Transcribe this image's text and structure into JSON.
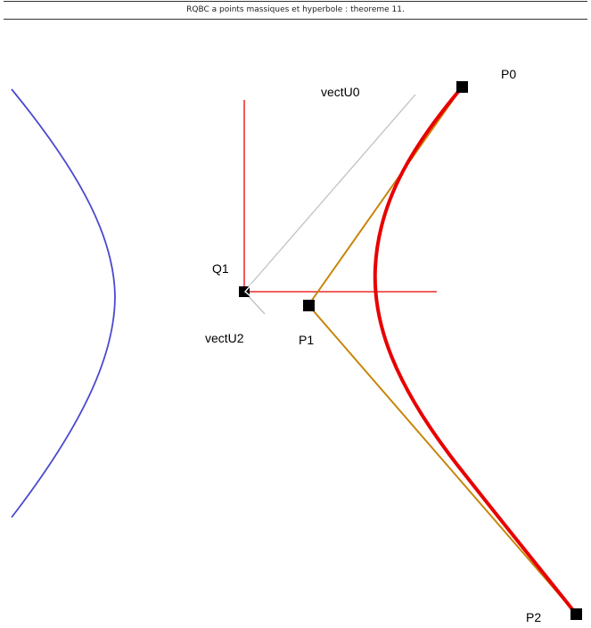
{
  "title": "RQBC a points massiques et hyperbole : theoreme 11.",
  "labels": {
    "p0": "P0",
    "p1": "P1",
    "p2": "P2",
    "q1": "Q1",
    "vectU0": "vectU0",
    "vectU2": "vectU2"
  },
  "colors": {
    "right_branch": "#e80000",
    "left_branch": "#4a4ad0",
    "control_polygon": "#c8860a",
    "axes": "#e80000",
    "vector": "#c0c0c8",
    "point": "#000000"
  }
}
